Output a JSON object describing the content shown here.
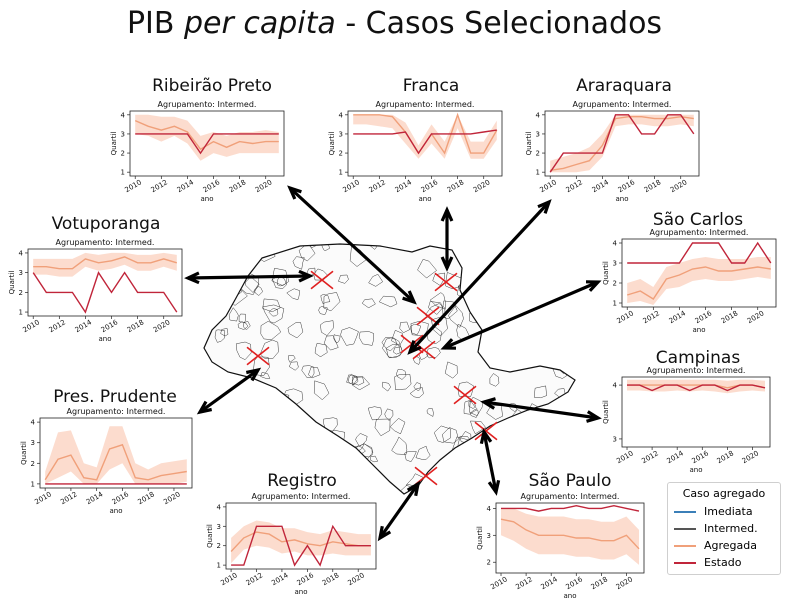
{
  "title": {
    "pre": "PIB ",
    "em": "per capita",
    "post": " - Casos Selecionados"
  },
  "legend": {
    "title": "Caso agregado",
    "items": [
      {
        "label": "Imediata",
        "color": "#3b7fb8"
      },
      {
        "label": "Intermed.",
        "color": "#555555"
      },
      {
        "label": "Agregada",
        "color": "#f0a07a"
      },
      {
        "label": "Estado",
        "color": "#c0253a"
      }
    ]
  },
  "colors": {
    "agregada": "#f0a07a",
    "band": "#fbd6c6",
    "estado": "#c0253a"
  },
  "chart_data": [
    {
      "type": "line",
      "city": "Ribeirão Preto",
      "title": "Agrupamento: Intermed.",
      "xlabel": "ano",
      "ylabel": "Quartil",
      "x": [
        2010,
        2011,
        2012,
        2013,
        2014,
        2015,
        2016,
        2017,
        2018,
        2019,
        2020,
        2021
      ],
      "ylim": [
        0.8,
        4.2
      ],
      "yticks": [
        1,
        2,
        3,
        4
      ],
      "xticks": [
        2010,
        2012,
        2014,
        2016,
        2018,
        2020
      ],
      "series": [
        {
          "name": "Estado",
          "values": [
            3,
            3,
            3,
            3,
            3,
            2,
            3,
            3,
            3,
            3,
            3,
            3
          ]
        },
        {
          "name": "Agregada",
          "values": [
            3.7,
            3.4,
            3.2,
            3.4,
            3.1,
            2.2,
            2.6,
            2.3,
            2.6,
            2.5,
            2.6,
            2.6
          ],
          "low": [
            3.0,
            2.9,
            2.6,
            2.9,
            2.5,
            1.6,
            2.0,
            1.8,
            2.0,
            2.0,
            2.0,
            2.0
          ],
          "high": [
            4,
            4,
            3.9,
            3.9,
            3.7,
            2.9,
            3.1,
            2.9,
            3.1,
            3.1,
            3.2,
            3.1
          ]
        }
      ]
    },
    {
      "type": "line",
      "city": "Franca",
      "title": "Agrupamento: Intermed.",
      "xlabel": "ano",
      "ylabel": "Quartil",
      "x": [
        2010,
        2011,
        2012,
        2013,
        2014,
        2015,
        2016,
        2017,
        2018,
        2019,
        2020,
        2021
      ],
      "ylim": [
        0.8,
        4.2
      ],
      "yticks": [
        1,
        2,
        3,
        4
      ],
      "xticks": [
        2010,
        2012,
        2014,
        2016,
        2018,
        2020
      ],
      "series": [
        {
          "name": "Estado",
          "values": [
            3,
            3,
            3,
            3,
            3.1,
            2,
            3,
            3,
            3,
            3,
            3.1,
            3.2
          ]
        },
        {
          "name": "Agregada",
          "values": [
            4,
            4,
            4,
            3.9,
            3.1,
            2,
            3,
            2,
            4,
            2,
            2,
            3.2
          ],
          "low": [
            3.5,
            3.5,
            3.4,
            3.3,
            2.5,
            1.7,
            2.5,
            1.7,
            3.3,
            1.7,
            1.7,
            2.7
          ],
          "high": [
            4,
            4,
            4,
            4,
            3.6,
            2.4,
            3.5,
            2.6,
            4,
            2.6,
            2.6,
            3.7
          ]
        }
      ]
    },
    {
      "type": "line",
      "city": "Araraquara",
      "title": "Agrupamento: Intermed.",
      "xlabel": "ano",
      "ylabel": "Quartil",
      "x": [
        2010,
        2011,
        2012,
        2013,
        2014,
        2015,
        2016,
        2017,
        2018,
        2019,
        2020,
        2021
      ],
      "ylim": [
        0.8,
        4.2
      ],
      "yticks": [
        1,
        2,
        3,
        4
      ],
      "xticks": [
        2010,
        2012,
        2014,
        2016,
        2018,
        2020
      ],
      "series": [
        {
          "name": "Estado",
          "values": [
            1,
            2,
            2,
            2,
            2,
            4,
            4,
            3,
            3,
            4,
            4,
            3
          ]
        },
        {
          "name": "Agregada",
          "values": [
            1.1,
            1.2,
            1.4,
            1.6,
            2.4,
            3.8,
            3.9,
            3.9,
            3.8,
            3.8,
            3.9,
            3.8
          ],
          "low": [
            1,
            1,
            1,
            1.1,
            1.8,
            3.4,
            3.5,
            3.5,
            3.4,
            3.4,
            3.5,
            3.4
          ],
          "high": [
            1.6,
            1.8,
            2,
            2.3,
            3,
            4,
            4,
            4,
            4,
            4,
            4,
            4
          ]
        }
      ]
    },
    {
      "type": "line",
      "city": "Votuporanga",
      "title": "Agrupamento: Intermed.",
      "xlabel": "ano",
      "ylabel": "Quartil",
      "x": [
        2010,
        2011,
        2012,
        2013,
        2014,
        2015,
        2016,
        2017,
        2018,
        2019,
        2020,
        2021
      ],
      "ylim": [
        0.8,
        4.2
      ],
      "yticks": [
        1,
        2,
        3,
        4
      ],
      "xticks": [
        2010,
        2012,
        2014,
        2016,
        2018,
        2020
      ],
      "series": [
        {
          "name": "Estado",
          "values": [
            3,
            2,
            2,
            2,
            1,
            3,
            2,
            3,
            2,
            2,
            2,
            1
          ]
        },
        {
          "name": "Agregada",
          "values": [
            3.3,
            3.3,
            3.2,
            3.2,
            3.7,
            3.5,
            3.6,
            3.8,
            3.5,
            3.5,
            3.7,
            3.5
          ],
          "low": [
            2.9,
            2.9,
            2.8,
            2.8,
            3.3,
            3.1,
            3.2,
            3.4,
            3.1,
            3.1,
            3.3,
            3.1
          ],
          "high": [
            3.7,
            3.7,
            3.7,
            3.7,
            4,
            3.9,
            4,
            4,
            3.9,
            3.9,
            4,
            3.9
          ]
        }
      ]
    },
    {
      "type": "line",
      "city": "São Carlos",
      "title": "Agrupamento: Intermed.",
      "xlabel": "ano",
      "ylabel": "Quartil",
      "x": [
        2010,
        2011,
        2012,
        2013,
        2014,
        2015,
        2016,
        2017,
        2018,
        2019,
        2020,
        2021
      ],
      "ylim": [
        0.8,
        4.2
      ],
      "yticks": [
        1,
        2,
        3,
        4
      ],
      "xticks": [
        2010,
        2012,
        2014,
        2016,
        2018,
        2020
      ],
      "series": [
        {
          "name": "Estado",
          "values": [
            3,
            3,
            3,
            3,
            3,
            4,
            4,
            4,
            3,
            3,
            4,
            3
          ]
        },
        {
          "name": "Agregada",
          "values": [
            1.4,
            1.6,
            1.2,
            2.2,
            2.4,
            2.7,
            2.8,
            2.6,
            2.6,
            2.7,
            2.8,
            2.7
          ],
          "low": [
            1,
            1.1,
            0.9,
            1.7,
            1.8,
            2.1,
            2.2,
            2.1,
            2.1,
            2.2,
            2.3,
            2.2
          ],
          "high": [
            2,
            2.2,
            1.8,
            2.8,
            3,
            3.2,
            3.3,
            3.2,
            3.2,
            3.2,
            3.3,
            3.3
          ]
        }
      ]
    },
    {
      "type": "line",
      "city": "Campinas",
      "title": "Agrupamento: Intermed.",
      "xlabel": "ano",
      "ylabel": "Quartil",
      "x": [
        2010,
        2011,
        2012,
        2013,
        2014,
        2015,
        2016,
        2017,
        2018,
        2019,
        2020,
        2021
      ],
      "ylim": [
        2.85,
        4.15
      ],
      "yticks": [
        3,
        4
      ],
      "xticks": [
        2010,
        2012,
        2014,
        2016,
        2018,
        2020
      ],
      "series": [
        {
          "name": "Estado",
          "values": [
            4,
            4,
            3.9,
            4,
            4,
            3.9,
            4,
            4,
            3.9,
            4,
            4,
            3.95
          ]
        },
        {
          "name": "Agregada",
          "values": [
            4,
            4,
            4,
            4,
            4,
            4,
            4,
            4,
            3.95,
            4,
            4,
            3.95
          ],
          "low": [
            3.9,
            3.9,
            3.88,
            3.88,
            3.9,
            3.88,
            3.9,
            3.88,
            3.85,
            3.88,
            3.9,
            3.88
          ],
          "high": [
            4.1,
            4.1,
            4.1,
            4.1,
            4.1,
            4.1,
            4.1,
            4.1,
            4.08,
            4.1,
            4.1,
            4.08
          ]
        }
      ]
    },
    {
      "type": "line",
      "city": "Pres. Prudente",
      "title": "Agrupamento: Intermed.",
      "xlabel": "ano",
      "ylabel": "Quartil",
      "x": [
        2010,
        2011,
        2012,
        2013,
        2014,
        2015,
        2016,
        2017,
        2018,
        2019,
        2020,
        2021
      ],
      "ylim": [
        0.8,
        4.2
      ],
      "yticks": [
        1,
        2,
        3,
        4
      ],
      "xticks": [
        2010,
        2012,
        2014,
        2016,
        2018,
        2020
      ],
      "series": [
        {
          "name": "Estado",
          "values": [
            1,
            1,
            1,
            1,
            1,
            1,
            1,
            1,
            1,
            1,
            1,
            1
          ]
        },
        {
          "name": "Agregada",
          "values": [
            1.2,
            2.2,
            2.4,
            1.3,
            1.2,
            2.7,
            2.9,
            1.3,
            1.2,
            1.4,
            1.5,
            1.6
          ],
          "low": [
            1,
            1.3,
            1.6,
            1,
            1,
            1.7,
            2,
            1,
            1,
            1,
            1,
            1.1
          ],
          "high": [
            1.6,
            3.5,
            3.6,
            2,
            1.8,
            3.8,
            3.8,
            2,
            1.7,
            2,
            2.1,
            2.2
          ]
        }
      ]
    },
    {
      "type": "line",
      "city": "Registro",
      "title": "Agrupamento: Intermed.",
      "xlabel": "ano",
      "ylabel": "Quartil",
      "x": [
        2010,
        2011,
        2012,
        2013,
        2014,
        2015,
        2016,
        2017,
        2018,
        2019,
        2020,
        2021
      ],
      "ylim": [
        0.8,
        4.2
      ],
      "yticks": [
        1,
        2,
        3,
        4
      ],
      "xticks": [
        2010,
        2012,
        2014,
        2016,
        2018,
        2020
      ],
      "series": [
        {
          "name": "Estado",
          "values": [
            1,
            1,
            3,
            3,
            3,
            1,
            2,
            1,
            3,
            2,
            2,
            2
          ]
        },
        {
          "name": "Agregada",
          "values": [
            1.7,
            2.4,
            2.7,
            2.6,
            2.2,
            2.3,
            2.1,
            2,
            2.2,
            2.1,
            2,
            2
          ],
          "low": [
            1.1,
            1.8,
            2,
            1.9,
            1.6,
            1.7,
            1.5,
            1.5,
            1.6,
            1.5,
            1.5,
            1.5
          ],
          "high": [
            2.4,
            3,
            3.3,
            3.2,
            2.9,
            2.9,
            2.7,
            2.6,
            2.8,
            2.7,
            2.6,
            2.6
          ]
        }
      ]
    },
    {
      "type": "line",
      "city": "São Paulo",
      "title": "Agrupamento: Intermed.",
      "xlabel": "ano",
      "ylabel": "Quartil",
      "x": [
        2010,
        2011,
        2012,
        2013,
        2014,
        2015,
        2016,
        2017,
        2018,
        2019,
        2020,
        2021
      ],
      "ylim": [
        1.6,
        4.2
      ],
      "yticks": [
        2,
        3,
        4
      ],
      "xticks": [
        2010,
        2012,
        2014,
        2016,
        2018,
        2020
      ],
      "series": [
        {
          "name": "Estado",
          "values": [
            4,
            4,
            4,
            3.9,
            4,
            4,
            4.1,
            4,
            4,
            4.1,
            4,
            3.9
          ]
        },
        {
          "name": "Agregada",
          "values": [
            3.6,
            3.5,
            3.2,
            3,
            3,
            3,
            2.9,
            2.9,
            2.8,
            2.8,
            3,
            2.5
          ],
          "low": [
            3,
            2.8,
            2.5,
            2.3,
            2.3,
            2.3,
            2.2,
            2.2,
            2.1,
            2.1,
            2.3,
            1.9
          ],
          "high": [
            4,
            4,
            3.8,
            3.7,
            3.7,
            3.7,
            3.6,
            3.6,
            3.5,
            3.5,
            3.7,
            3.2
          ]
        }
      ]
    }
  ]
}
